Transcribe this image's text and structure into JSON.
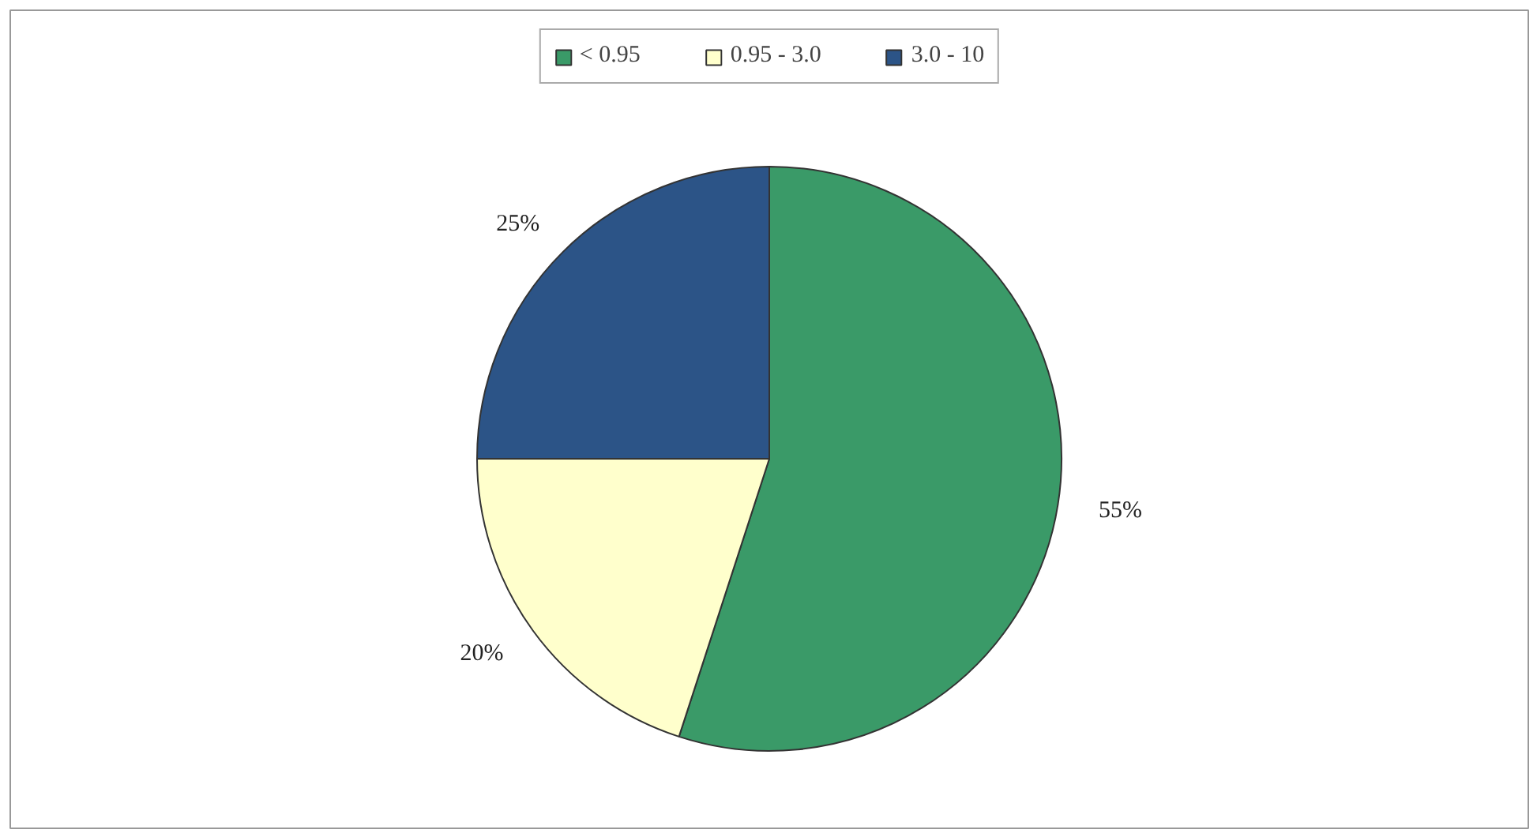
{
  "chart_data": {
    "type": "pie",
    "categories": [
      "< 0.95",
      "0.95 - 3.0",
      "3.0 - 10"
    ],
    "values": [
      55,
      20,
      25
    ],
    "colors": [
      "#3a9a68",
      "#ffffcc",
      "#2c5487"
    ],
    "value_labels": [
      "55%",
      "20%",
      "25%"
    ],
    "legend": "top"
  }
}
